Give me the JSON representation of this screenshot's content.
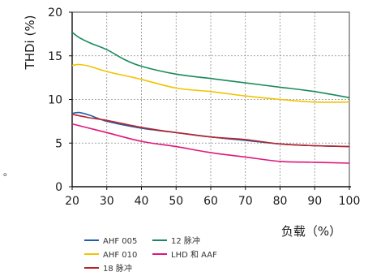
{
  "chart_data": {
    "type": "line",
    "title": "",
    "ylabel": "THDi (%)",
    "xlabel": "负载（%）",
    "xlim": [
      20,
      100
    ],
    "ylim": [
      0,
      20
    ],
    "x_ticks": [
      20,
      30,
      40,
      50,
      60,
      70,
      80,
      90,
      100
    ],
    "y_ticks": [
      0,
      5,
      10,
      15,
      20
    ],
    "x_tick_labels": [
      "20",
      "30",
      "40",
      "50",
      "60",
      "70",
      "80",
      "90",
      "100"
    ],
    "y_tick_labels": [
      "0",
      "5",
      "10",
      "15",
      "20"
    ],
    "grid": "dashed",
    "legend_position": "bottom",
    "series": [
      {
        "name": "AHF 005",
        "color": "#1f5fa8",
        "x": [
          20,
          22,
          25,
          30,
          40,
          50,
          60,
          70,
          80,
          90,
          100
        ],
        "y": [
          8.4,
          8.5,
          8.2,
          7.5,
          6.7,
          6.2,
          5.7,
          5.3,
          4.9,
          4.7,
          4.6
        ]
      },
      {
        "name": "AHF 010",
        "color": "#f2c300",
        "x": [
          20,
          22,
          25,
          30,
          40,
          50,
          60,
          70,
          80,
          90,
          100
        ],
        "y": [
          13.9,
          14.0,
          13.8,
          13.2,
          12.3,
          11.3,
          10.9,
          10.4,
          10.0,
          9.7,
          9.7
        ]
      },
      {
        "name": "18 脉冲",
        "color": "#b8232b",
        "x": [
          20,
          25,
          30,
          40,
          50,
          60,
          70,
          80,
          90,
          100
        ],
        "y": [
          8.3,
          7.9,
          7.6,
          6.8,
          6.2,
          5.7,
          5.4,
          4.9,
          4.7,
          4.6
        ]
      },
      {
        "name": "12 脉冲",
        "color": "#1a8a5a",
        "x": [
          20,
          22,
          25,
          30,
          35,
          40,
          50,
          60,
          70,
          80,
          90,
          100
        ],
        "y": [
          17.7,
          17.1,
          16.5,
          15.7,
          14.6,
          13.8,
          12.9,
          12.4,
          11.9,
          11.4,
          10.9,
          10.2
        ]
      },
      {
        "name": "LHD 和 AAF",
        "color": "#e0177a",
        "x": [
          20,
          25,
          30,
          40,
          50,
          60,
          70,
          80,
          90,
          100
        ],
        "y": [
          7.2,
          6.7,
          6.2,
          5.2,
          4.6,
          3.9,
          3.4,
          2.9,
          2.8,
          2.7
        ]
      }
    ]
  },
  "stray_mark": "。"
}
